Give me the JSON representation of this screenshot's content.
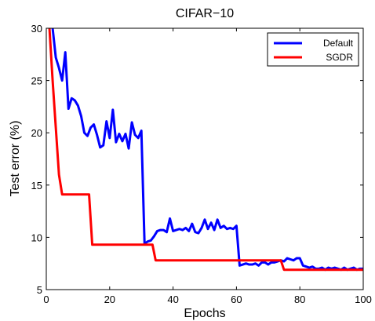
{
  "chart_data": {
    "type": "line",
    "title": "CIFAR−10",
    "xlabel": "Epochs",
    "ylabel": "Test error (%)",
    "xlim": [
      0,
      100
    ],
    "ylim": [
      5,
      30
    ],
    "xticks": [
      "0",
      "20",
      "40",
      "60",
      "80",
      "100"
    ],
    "yticks": [
      "5",
      "10",
      "15",
      "20",
      "25",
      "30"
    ],
    "grid": false,
    "legend_position": "top-right",
    "series": [
      {
        "name": "Default",
        "color": "#0000ff",
        "points": [
          [
            2,
            30
          ],
          [
            3,
            27.2
          ],
          [
            4,
            26.2
          ],
          [
            5,
            25.0
          ],
          [
            6,
            27.7
          ],
          [
            7,
            22.3
          ],
          [
            8,
            23.3
          ],
          [
            9,
            23.1
          ],
          [
            10,
            22.6
          ],
          [
            11,
            21.6
          ],
          [
            12,
            20.0
          ],
          [
            13,
            19.7
          ],
          [
            14,
            20.5
          ],
          [
            15,
            20.8
          ],
          [
            16,
            19.8
          ],
          [
            17,
            18.6
          ],
          [
            18,
            18.8
          ],
          [
            19,
            21.1
          ],
          [
            20,
            19.5
          ],
          [
            21,
            22.2
          ],
          [
            22,
            19.1
          ],
          [
            23,
            19.9
          ],
          [
            24,
            19.2
          ],
          [
            25,
            19.9
          ],
          [
            26,
            18.5
          ],
          [
            27,
            21.0
          ],
          [
            28,
            19.8
          ],
          [
            29,
            19.5
          ],
          [
            30,
            20.2
          ],
          [
            31,
            9.4
          ],
          [
            32,
            9.6
          ],
          [
            33,
            9.7
          ],
          [
            34,
            10.1
          ],
          [
            35,
            10.6
          ],
          [
            36,
            10.7
          ],
          [
            37,
            10.7
          ],
          [
            38,
            10.5
          ],
          [
            39,
            11.8
          ],
          [
            40,
            10.6
          ],
          [
            41,
            10.7
          ],
          [
            42,
            10.8
          ],
          [
            43,
            10.7
          ],
          [
            44,
            10.9
          ],
          [
            45,
            10.6
          ],
          [
            46,
            11.3
          ],
          [
            47,
            10.5
          ],
          [
            48,
            10.4
          ],
          [
            49,
            10.9
          ],
          [
            50,
            11.7
          ],
          [
            51,
            10.8
          ],
          [
            52,
            11.4
          ],
          [
            53,
            10.7
          ],
          [
            54,
            11.7
          ],
          [
            55,
            10.9
          ],
          [
            56,
            11.1
          ],
          [
            57,
            10.8
          ],
          [
            58,
            10.9
          ],
          [
            59,
            10.8
          ],
          [
            60,
            11.1
          ],
          [
            61,
            7.3
          ],
          [
            62,
            7.4
          ],
          [
            63,
            7.5
          ],
          [
            64,
            7.4
          ],
          [
            65,
            7.4
          ],
          [
            66,
            7.5
          ],
          [
            67,
            7.3
          ],
          [
            68,
            7.6
          ],
          [
            69,
            7.6
          ],
          [
            70,
            7.4
          ],
          [
            71,
            7.6
          ],
          [
            72,
            7.6
          ],
          [
            73,
            7.7
          ],
          [
            74,
            7.8
          ],
          [
            75,
            7.7
          ],
          [
            76,
            8.0
          ],
          [
            77,
            7.9
          ],
          [
            78,
            7.8
          ],
          [
            79,
            8.0
          ],
          [
            80,
            8.0
          ],
          [
            81,
            7.3
          ],
          [
            82,
            7.2
          ],
          [
            83,
            7.1
          ],
          [
            84,
            7.2
          ],
          [
            85,
            7.0
          ],
          [
            86,
            7.0
          ],
          [
            87,
            7.1
          ],
          [
            88,
            6.9
          ],
          [
            89,
            7.1
          ],
          [
            90,
            7.0
          ],
          [
            91,
            7.1
          ],
          [
            92,
            7.0
          ],
          [
            93,
            6.9
          ],
          [
            94,
            7.1
          ],
          [
            95,
            6.9
          ],
          [
            96,
            7.0
          ],
          [
            97,
            7.1
          ],
          [
            98,
            6.9
          ],
          [
            99,
            7.0
          ],
          [
            100,
            7.0
          ]
        ]
      },
      {
        "name": "SGDR",
        "color": "#ff0000",
        "points": [
          [
            1,
            30
          ],
          [
            2,
            25.0
          ],
          [
            3,
            20.5
          ],
          [
            4,
            16.0
          ],
          [
            5,
            14.1
          ],
          [
            13.5,
            14.1
          ],
          [
            14.5,
            9.3
          ],
          [
            33.5,
            9.3
          ],
          [
            34.5,
            7.8
          ],
          [
            74,
            7.8
          ],
          [
            75,
            6.9
          ],
          [
            100,
            6.9
          ]
        ]
      }
    ]
  }
}
